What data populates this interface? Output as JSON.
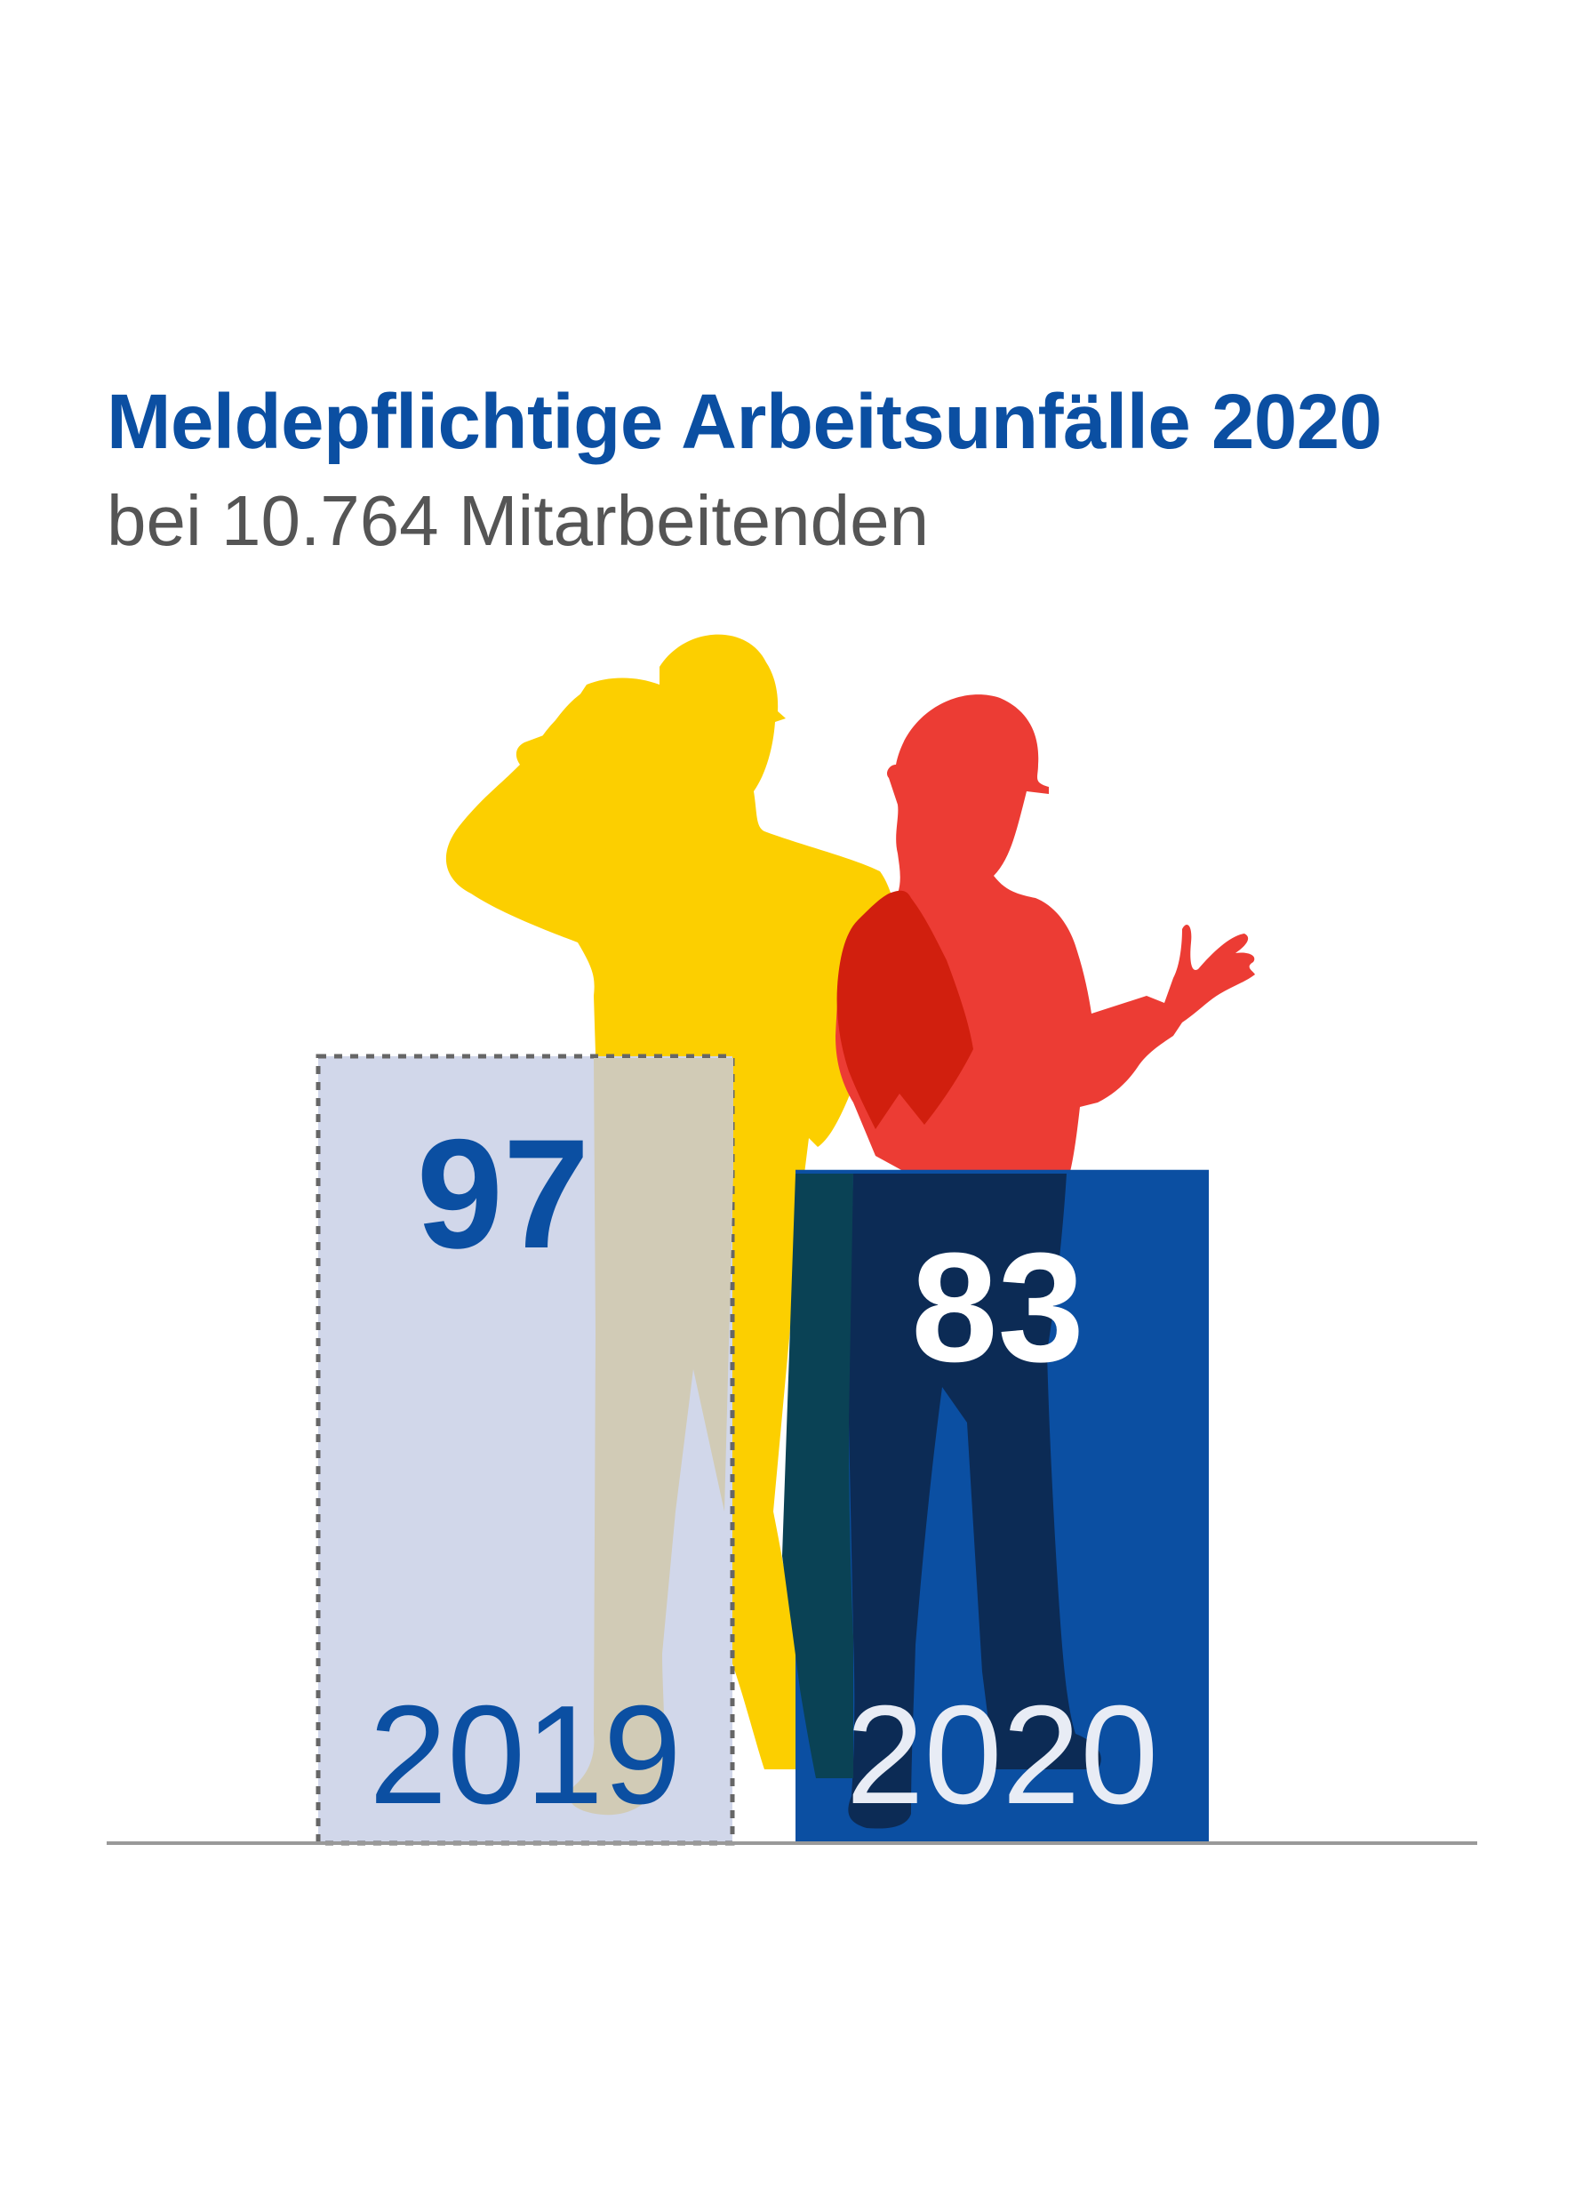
{
  "title": "Meldepflichtige Arbeitsunfälle 2020",
  "subtitle": "bei 10.764 Mitarbeitenden",
  "chart_data": {
    "type": "bar",
    "categories": [
      "2019",
      "2020"
    ],
    "values": [
      97,
      83
    ],
    "ylim": [
      0,
      97
    ],
    "grid": false
  },
  "colors": {
    "title": "#0b4fa2",
    "subtitle": "#555555",
    "bar_2019_fill": "#d1d7ea",
    "bar_2019_border": "#666666",
    "bar_2020_fill": "#0b4fa2",
    "label_2019": "#0b4fa2",
    "label_2020": "#ffffff",
    "year_2020": "#e8ecf5",
    "baseline": "#999999",
    "worker_left": "#fccf00",
    "worker_right": "#ec3c34"
  },
  "illustration": {
    "left_figure": "worker-with-helmet-silhouette",
    "right_figure": "female-worker-with-helmet-silhouette"
  }
}
